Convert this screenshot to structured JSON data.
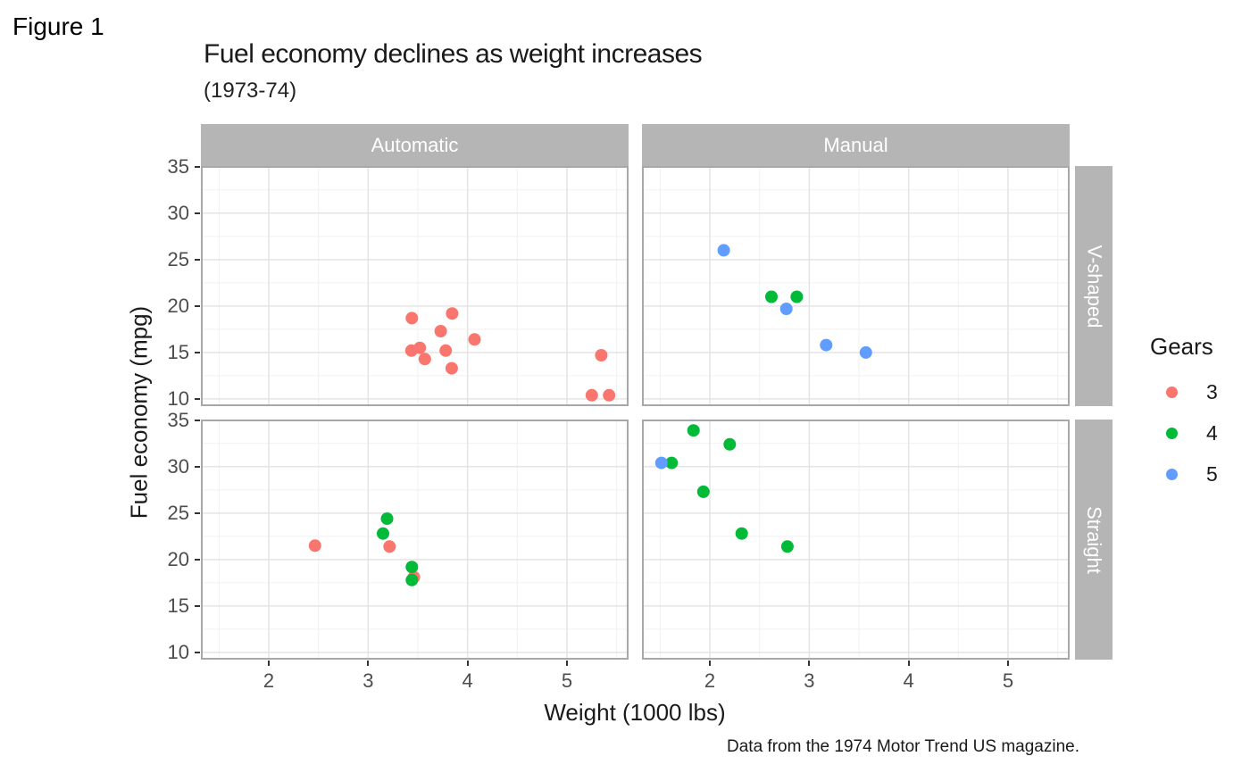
{
  "figure_label": "Figure 1",
  "header": {
    "title": "Fuel economy declines as weight increases",
    "subtitle": "(1973-74)"
  },
  "caption": "Data from the 1974 Motor Trend US magazine.",
  "axes": {
    "x_label": "Weight (1000 lbs)",
    "y_label": "Fuel economy (mpg)"
  },
  "facets": {
    "columns": [
      "Automatic",
      "Manual"
    ],
    "rows": [
      "V-shaped",
      "Straight"
    ]
  },
  "legend": {
    "title": "Gears",
    "items": [
      {
        "label": "3",
        "color": "#F8766D"
      },
      {
        "label": "4",
        "color": "#00BA38"
      },
      {
        "label": "5",
        "color": "#619CFF"
      }
    ]
  },
  "colors": {
    "strip_bg": "#b5b5b5",
    "strip_text": "#ffffff",
    "grid_major": "#e4e4e4",
    "grid_minor": "#f1f1f1",
    "panel_border": "#a8a8a8",
    "tick_mark": "#333333",
    "tick_label": "#4d4d4d"
  },
  "chart_data": {
    "type": "scatter",
    "title": "Fuel economy declines as weight increases",
    "subtitle": "(1973-74)",
    "xlabel": "Weight (1000 lbs)",
    "ylabel": "Fuel economy (mpg)",
    "legend_title": "Gears",
    "xlim": [
      1.317,
      5.62
    ],
    "ylim": [
      9.225,
      35.075
    ],
    "x_ticks": [
      2,
      3,
      4,
      5
    ],
    "y_ticks": [
      35,
      30,
      25,
      20,
      15,
      10
    ],
    "x_minor_ticks": [
      1.5,
      2.5,
      3.5,
      4.5,
      5.5
    ],
    "y_minor_ticks": [
      12.5,
      17.5,
      22.5,
      27.5,
      32.5
    ],
    "grid": true,
    "legend_position": "right",
    "point_format": [
      "weight_1000lbs",
      "mpg",
      "gears"
    ],
    "panels": [
      {
        "facet_col": "Automatic",
        "facet_row": "V-shaped",
        "points": [
          [
            3.44,
            18.7,
            "3"
          ],
          [
            3.57,
            14.3,
            "3"
          ],
          [
            4.07,
            16.4,
            "3"
          ],
          [
            3.73,
            17.3,
            "3"
          ],
          [
            3.78,
            15.2,
            "3"
          ],
          [
            5.25,
            10.4,
            "3"
          ],
          [
            5.424,
            10.4,
            "3"
          ],
          [
            5.345,
            14.7,
            "3"
          ],
          [
            3.52,
            15.5,
            "3"
          ],
          [
            3.435,
            15.2,
            "3"
          ],
          [
            3.84,
            13.3,
            "3"
          ],
          [
            3.845,
            19.2,
            "3"
          ]
        ]
      },
      {
        "facet_col": "Manual",
        "facet_row": "V-shaped",
        "points": [
          [
            2.62,
            21.0,
            "4"
          ],
          [
            2.875,
            21.0,
            "4"
          ],
          [
            2.14,
            26.0,
            "5"
          ],
          [
            3.17,
            15.8,
            "5"
          ],
          [
            2.77,
            19.7,
            "5"
          ],
          [
            3.57,
            15.0,
            "5"
          ]
        ]
      },
      {
        "facet_col": "Automatic",
        "facet_row": "Straight",
        "points": [
          [
            3.215,
            21.4,
            "3"
          ],
          [
            3.46,
            18.1,
            "3"
          ],
          [
            3.19,
            24.4,
            "4"
          ],
          [
            3.15,
            22.8,
            "4"
          ],
          [
            3.44,
            19.2,
            "4"
          ],
          [
            3.44,
            17.8,
            "4"
          ],
          [
            2.465,
            21.5,
            "3"
          ]
        ]
      },
      {
        "facet_col": "Manual",
        "facet_row": "Straight",
        "points": [
          [
            2.32,
            22.8,
            "4"
          ],
          [
            2.2,
            32.4,
            "4"
          ],
          [
            1.615,
            30.4,
            "4"
          ],
          [
            1.835,
            33.9,
            "4"
          ],
          [
            1.935,
            27.3,
            "4"
          ],
          [
            1.513,
            30.4,
            "5"
          ],
          [
            2.78,
            21.4,
            "4"
          ]
        ]
      }
    ]
  }
}
